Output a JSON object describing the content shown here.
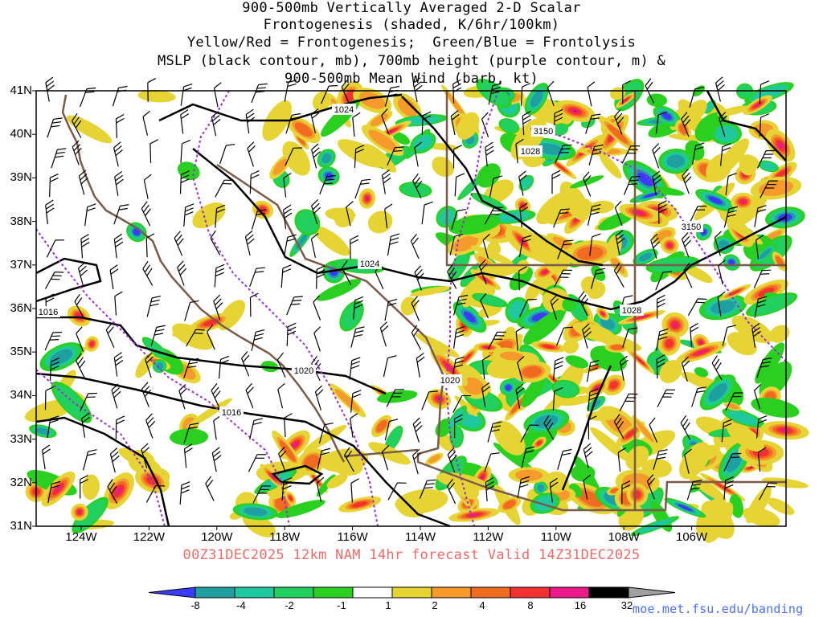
{
  "title_lines": [
    "900-500mb Vertically Averaged 2-D Scalar",
    "Frontogenesis (shaded, K/6hr/100km)",
    "Yellow/Red = Frontogenesis;  Green/Blue = Frontolysis",
    "MSLP (black contour, mb), 700mb height (purple contour, m) &",
    "900-500mb Mean Wind (barb, kt)"
  ],
  "forecast_line": "00Z31DEC2025 12km NAM 14hr forecast Valid 14Z31DEC2025",
  "source_url": "moe.met.fsu.edu/banding",
  "lat_labels": [
    "41N",
    "40N",
    "39N",
    "38N",
    "37N",
    "36N",
    "35N",
    "34N",
    "33N",
    "32N",
    "31N"
  ],
  "lon_labels": [
    "124W",
    "122W",
    "120W",
    "118W",
    "116W",
    "114W",
    "112W",
    "110W",
    "108W",
    "106W"
  ],
  "colorbar": {
    "labels": [
      "-8",
      "-4",
      "-2",
      "-1",
      "1",
      "2",
      "4",
      "8",
      "16",
      "32"
    ],
    "colors": [
      "#3b3bff",
      "#1fa0a0",
      "#20c8a0",
      "#22d060",
      "#2ad020",
      "#ffffff",
      "#e6d435",
      "#f59a2b",
      "#f06a1f",
      "#f43030",
      "#ea1a8a",
      "#000000",
      "#a0a0a0"
    ]
  },
  "contour_labels": {
    "mslp": [
      "1024",
      "1028",
      "1024",
      "1028",
      "1020",
      "1020",
      "1016",
      "1016"
    ],
    "height700": [
      "3150",
      "3150"
    ]
  },
  "colors": {
    "mslp": "#000000",
    "height700": "#9a2fd0",
    "borders": "#7a5a48",
    "forecast": "#f06a6a",
    "url": "#4a70ff"
  }
}
